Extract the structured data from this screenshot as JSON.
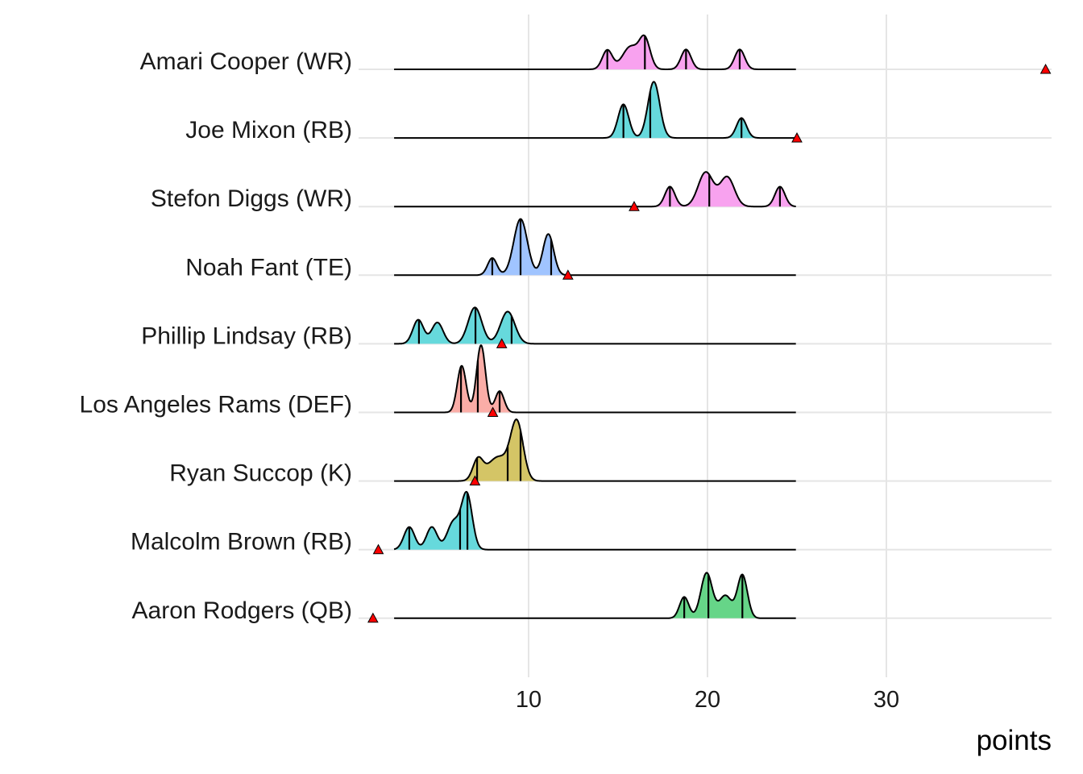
{
  "chart_data": {
    "type": "ridgeline",
    "title": "",
    "xlabel": "points",
    "ylabel": "",
    "xlim": [
      0,
      39.5
    ],
    "x_ticks": [
      10,
      20,
      30
    ],
    "x_tick_labels": [
      "10",
      "20",
      "30"
    ],
    "grid": "major vertical + horizontal row baselines",
    "density_range": [
      2.48,
      24.95
    ],
    "marker": "red triangle = actual points",
    "colors": {
      "WR": "#F8A2EF",
      "RB": "#66D9DC",
      "TE": "#A0C4FF",
      "DEF": "#FAADA7",
      "K": "#D4C566",
      "QB": "#66D588",
      "marker": "#FF0000"
    },
    "rows": [
      {
        "label": "Amari Cooper (WR)",
        "position": "WR",
        "actual": 38.9,
        "components": [
          [
            14.4,
            0.28,
            0.28
          ],
          [
            15.7,
            0.45,
            0.33
          ],
          [
            16.5,
            0.3,
            0.42
          ],
          [
            18.8,
            0.28,
            0.29
          ],
          [
            21.8,
            0.28,
            0.29
          ]
        ],
        "quantiles": [
          14.4,
          16.5,
          18.8,
          21.8
        ]
      },
      {
        "label": "Joe Mixon (RB)",
        "position": "RB",
        "actual": 25.0,
        "components": [
          [
            15.3,
            0.3,
            0.49
          ],
          [
            17.0,
            0.33,
            0.82
          ],
          [
            21.9,
            0.28,
            0.29
          ]
        ],
        "quantiles": [
          15.3,
          16.8,
          21.9
        ]
      },
      {
        "label": "Stefon Diggs (WR)",
        "position": "WR",
        "actual": 15.9,
        "components": [
          [
            17.9,
            0.28,
            0.29
          ],
          [
            19.9,
            0.42,
            0.5
          ],
          [
            21.1,
            0.4,
            0.43
          ],
          [
            24.05,
            0.28,
            0.29
          ]
        ],
        "quantiles": [
          17.9,
          20.1,
          24.05
        ]
      },
      {
        "label": "Noah Fant (TE)",
        "position": "TE",
        "actual": 12.2,
        "components": [
          [
            7.97,
            0.26,
            0.25
          ],
          [
            9.55,
            0.38,
            0.82
          ],
          [
            11.1,
            0.3,
            0.6
          ]
        ],
        "quantiles": [
          7.97,
          9.55,
          11.26
        ]
      },
      {
        "label": "Phillip Lindsay (RB)",
        "position": "RB",
        "actual": 8.5,
        "components": [
          [
            3.83,
            0.3,
            0.35
          ],
          [
            4.9,
            0.32,
            0.31
          ],
          [
            7.0,
            0.38,
            0.53
          ],
          [
            8.83,
            0.4,
            0.47
          ]
        ],
        "quantiles": [
          3.87,
          7.03,
          9.05
        ]
      },
      {
        "label": "Los Angeles Rams (DEF)",
        "position": "DEF",
        "actual": 8.0,
        "components": [
          [
            6.26,
            0.25,
            0.68
          ],
          [
            7.34,
            0.25,
            0.98
          ],
          [
            8.38,
            0.25,
            0.31
          ]
        ],
        "quantiles": [
          6.22,
          7.16,
          8.38
        ]
      },
      {
        "label": "Ryan Succop (K)",
        "position": "K",
        "actual": 7.0,
        "components": [
          [
            7.16,
            0.28,
            0.29
          ],
          [
            8.3,
            0.6,
            0.35
          ],
          [
            9.35,
            0.35,
            0.82
          ]
        ],
        "quantiles": [
          7.12,
          8.83,
          9.55
        ]
      },
      {
        "label": "Malcolm Brown (RB)",
        "position": "RB",
        "actual": 1.6,
        "components": [
          [
            3.33,
            0.3,
            0.33
          ],
          [
            4.59,
            0.3,
            0.33
          ],
          [
            5.8,
            0.35,
            0.4
          ],
          [
            6.55,
            0.3,
            0.8
          ]
        ],
        "quantiles": [
          3.33,
          6.17,
          6.58
        ]
      },
      {
        "label": "Aaron Rodgers (QB)",
        "position": "QB",
        "actual": 1.3,
        "components": [
          [
            18.7,
            0.26,
            0.31
          ],
          [
            19.95,
            0.32,
            0.66
          ],
          [
            21.0,
            0.35,
            0.33
          ],
          [
            21.95,
            0.28,
            0.63
          ]
        ],
        "quantiles": [
          18.7,
          20.05,
          21.95
        ]
      }
    ]
  }
}
